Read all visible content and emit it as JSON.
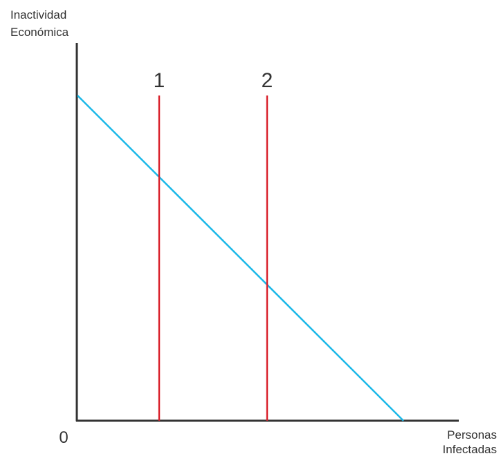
{
  "diagram": {
    "y_axis_label_line1": "Inactividad",
    "y_axis_label_line2": "Económica",
    "x_axis_label_line1": "Personas",
    "x_axis_label_line2": "Infectadas",
    "origin_label": "0",
    "vertical_line_1_label": "1",
    "vertical_line_2_label": "2"
  },
  "colors": {
    "axis": "#333333",
    "tradeoff_line": "#1ab8e8",
    "vertical_lines": "#d9232e"
  }
}
